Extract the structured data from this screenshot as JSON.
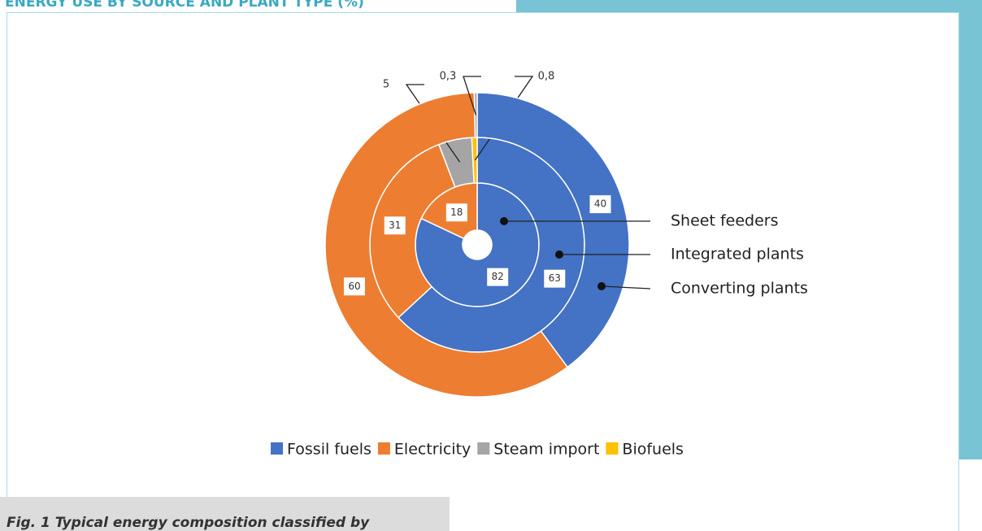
{
  "chart_data": {
    "type": "donut",
    "title": "ENERGY USE BY SOURCE AND PLANT TYPE (%)",
    "caption": "Fig. 1 Typical energy composition classified by",
    "categories": [
      "Fossil fuels",
      "Electricity",
      "Steam import",
      "Biofuels"
    ],
    "colors": [
      "#4472c4",
      "#ed7d31",
      "#a5a5a5",
      "#ffc000"
    ],
    "series": [
      {
        "name": "Sheet feeders",
        "values": [
          82,
          18,
          null,
          null
        ]
      },
      {
        "name": "Integrated plants",
        "values": [
          63,
          31,
          5,
          0.8
        ],
        "value_labels": [
          "63",
          "31",
          "5",
          "0,8"
        ]
      },
      {
        "name": "Converting plants",
        "values": [
          40,
          60,
          0.3,
          null
        ],
        "value_labels": [
          "40",
          "60",
          "0,3",
          null
        ]
      }
    ],
    "legend": "bottom"
  }
}
